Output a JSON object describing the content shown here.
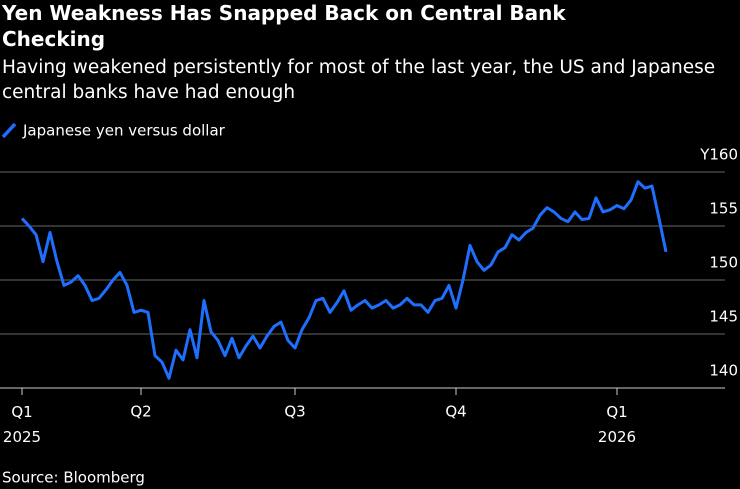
{
  "chart_data": {
    "type": "line",
    "title": "Yen Weakness Has Snapped Back on Central Bank Checking",
    "subtitle": "Having weakened persistently for most of the last year, the US and Japanese central banks have had enough",
    "source": "Source: Bloomberg",
    "categories": [
      "Q1 2025",
      null,
      null,
      null,
      null,
      null,
      null,
      null,
      null,
      null,
      null,
      null,
      null,
      null,
      null,
      null,
      null,
      "Q2",
      null,
      null,
      null,
      null,
      null,
      null,
      null,
      null,
      null,
      null,
      null,
      null,
      null,
      null,
      null,
      null,
      null,
      null,
      null,
      null,
      null,
      "Q3",
      null,
      null,
      null,
      null,
      null,
      null,
      null,
      null,
      null,
      null,
      null,
      null,
      null,
      null,
      null,
      null,
      null,
      null,
      null,
      null,
      null,
      null,
      "Q4",
      null,
      null,
      null,
      null,
      null,
      null,
      null,
      null,
      null,
      null,
      null,
      null,
      null,
      null,
      null,
      null,
      null,
      null,
      null,
      null,
      null,
      null,
      "Q1 2026",
      null,
      null,
      null,
      null,
      null,
      null,
      null
    ],
    "series": [
      {
        "name": "Japanese yen versus dollar",
        "color": "#1f6fff",
        "values": [
          155.7,
          155,
          154.2,
          151.7,
          154.4,
          151.7,
          149.5,
          149.8,
          150.4,
          149.5,
          148.1,
          148.3,
          149.1,
          150,
          150.7,
          149.5,
          147,
          147.2,
          147,
          143,
          142.4,
          140.9,
          143.5,
          142.6,
          145.4,
          142.8,
          148.1,
          145.2,
          144.4,
          143,
          144.6,
          142.8,
          143.9,
          144.8,
          143.7,
          144.8,
          145.7,
          146.1,
          144.4,
          143.7,
          145.4,
          146.5,
          148.1,
          148.3,
          147,
          147.9,
          149,
          147.2,
          147.7,
          148.1,
          147.4,
          147.7,
          148.1,
          147.4,
          147.7,
          148.3,
          147.7,
          147.7,
          147,
          148.1,
          148.3,
          149.5,
          147.4,
          150,
          153.2,
          151.7,
          150.9,
          151.4,
          152.6,
          153,
          154.2,
          153.7,
          154.4,
          154.8,
          156,
          156.7,
          156.3,
          155.7,
          155.4,
          156.3,
          155.6,
          155.7,
          157.6,
          156.3,
          156.5,
          156.9,
          156.6,
          157.4,
          159.1,
          158.5,
          158.7,
          155.7,
          152.6
        ]
      }
    ],
    "ylim": [
      140,
      160
    ],
    "yticks": [
      {
        "value": 160,
        "label": "Y160"
      },
      155,
      150,
      145,
      140
    ],
    "grid": true
  }
}
